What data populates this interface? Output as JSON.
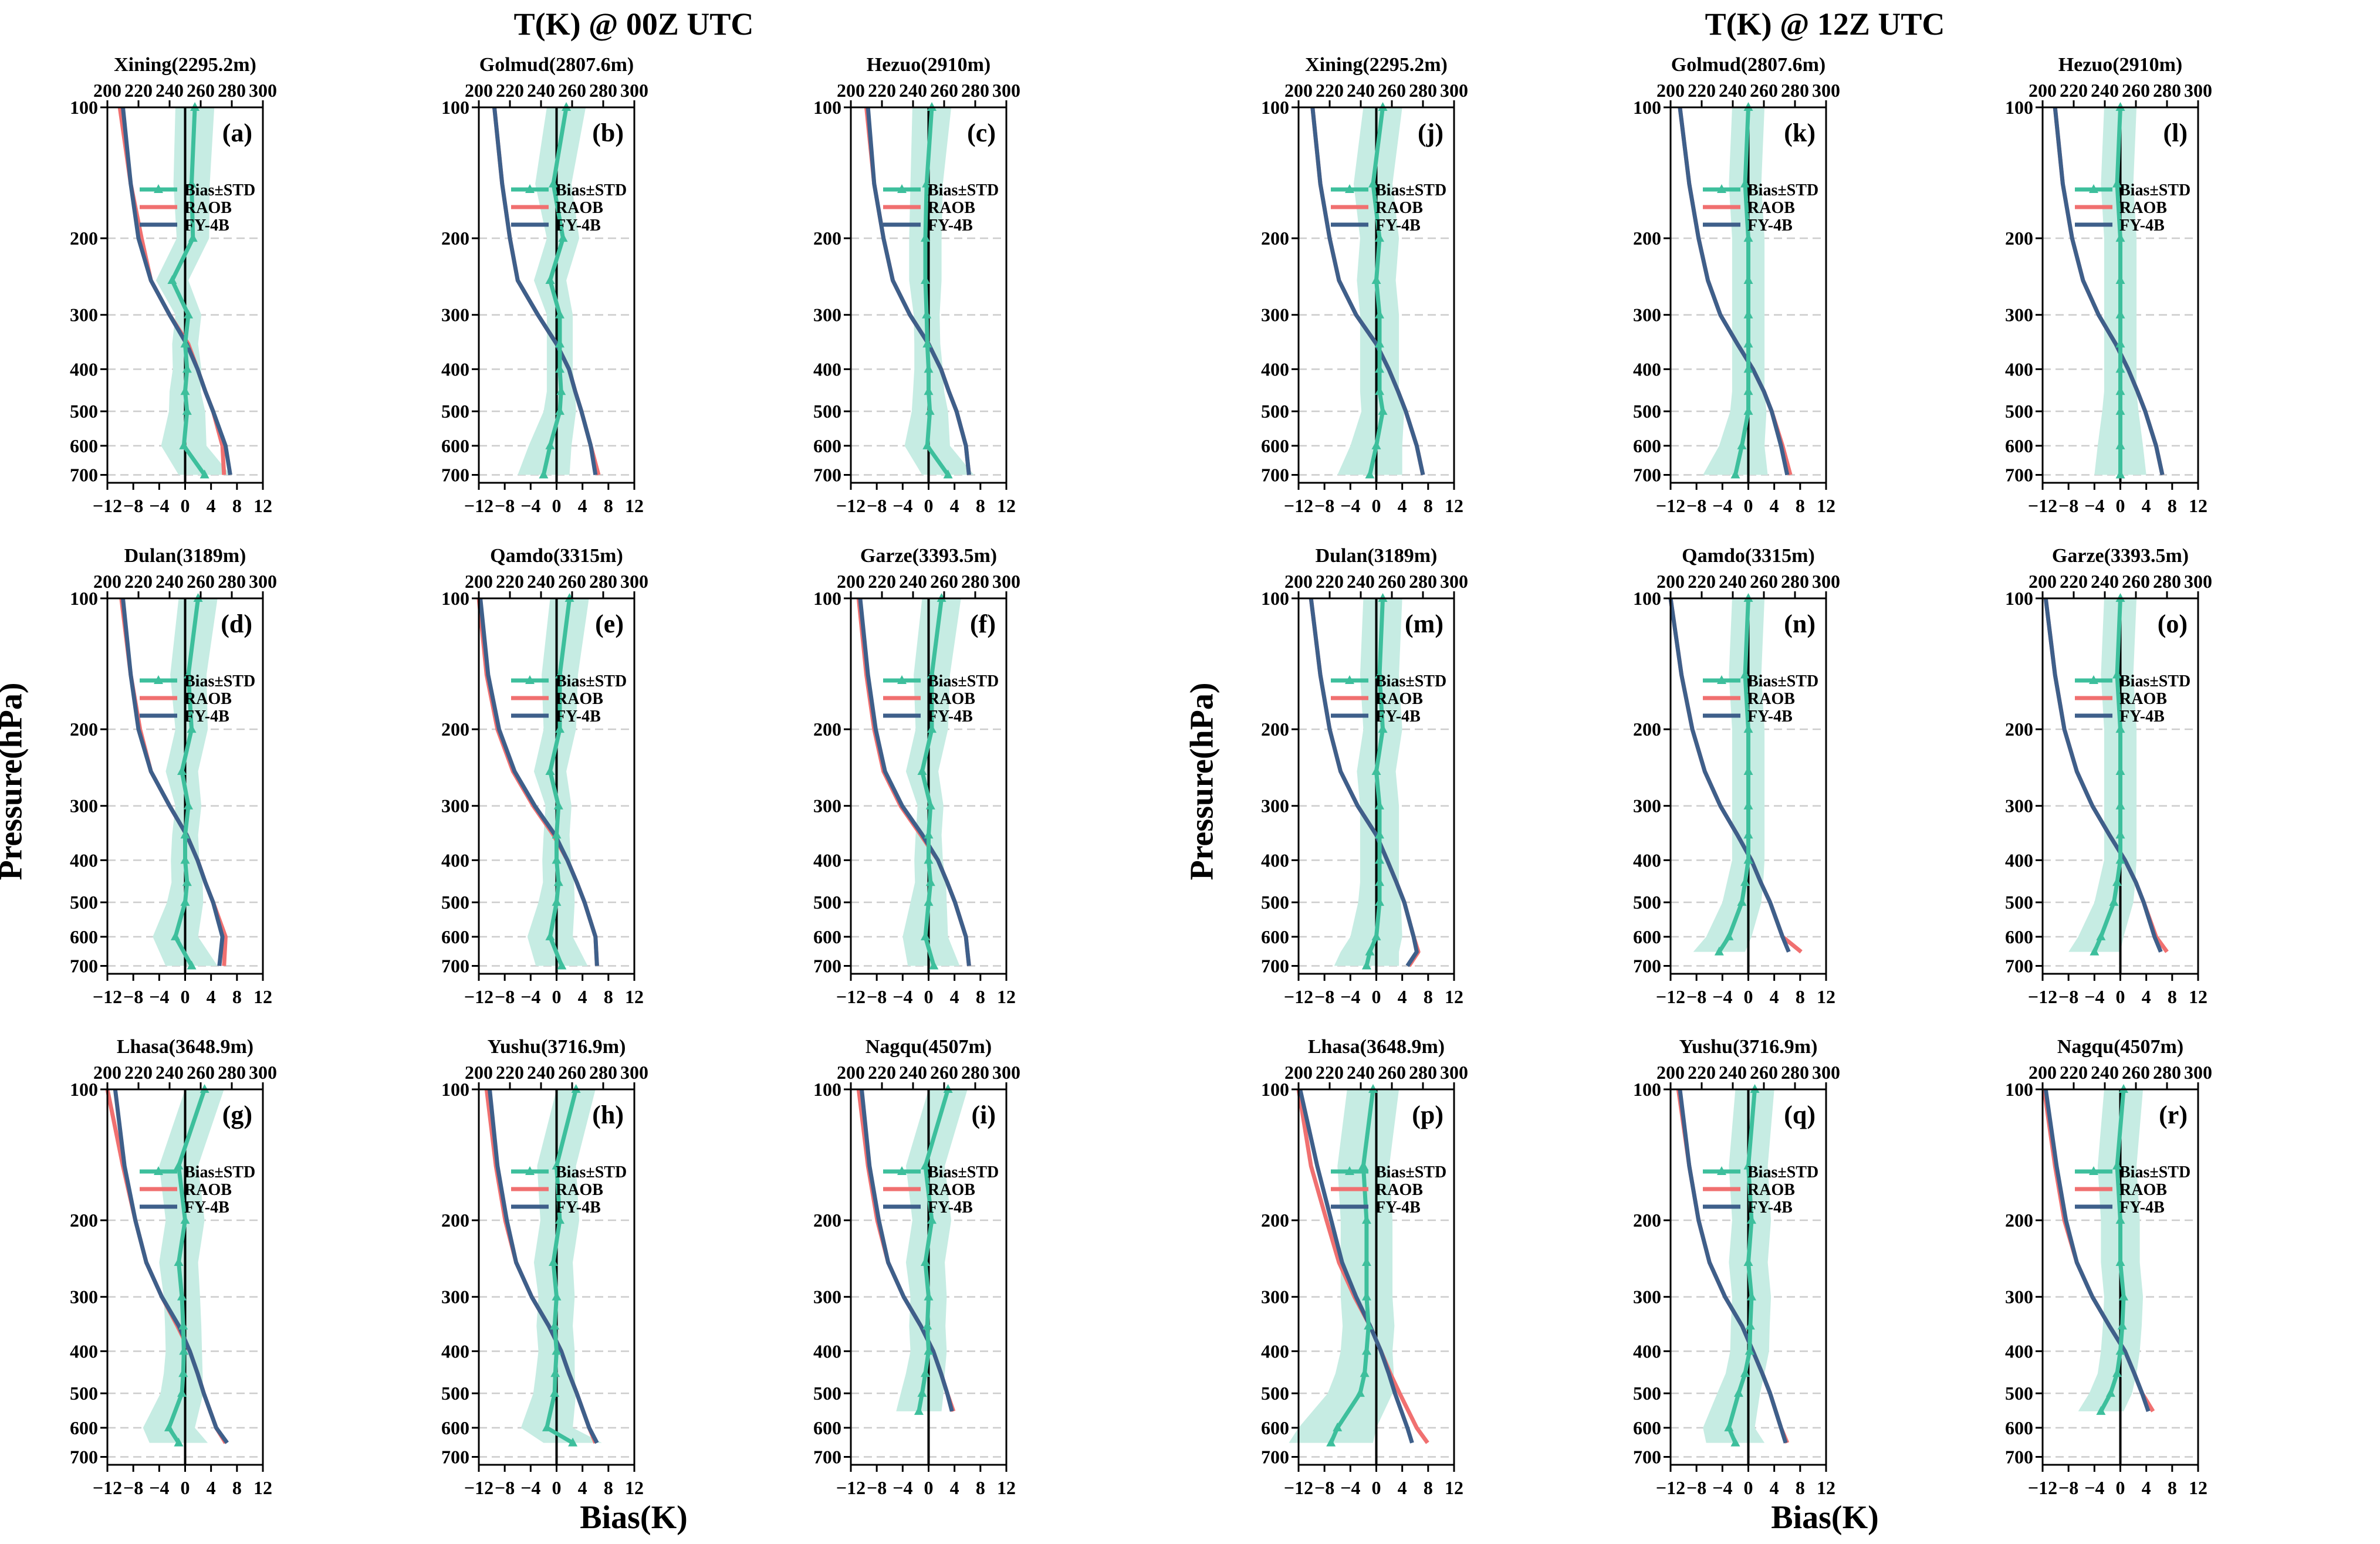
{
  "figure": {
    "title_left": "T(K) @ 00Z UTC",
    "title_right": "T(K) @ 12Z UTC",
    "ylabel": "Pressure(hPa)",
    "xlabel": "Bias(K)",
    "legend": [
      "Bias±STD",
      "RAOB",
      "FY-4B"
    ],
    "colors": {
      "bias": "#3dbf9c",
      "band": "#c6ece3",
      "raob": "#f07070",
      "fy4b": "#3e5f8a",
      "zero": "#000000",
      "grid": "#cccccc"
    },
    "bias_ticks": [
      -12,
      -8,
      -4,
      0,
      4,
      8,
      12
    ],
    "temp_ticks": [
      200,
      220,
      240,
      260,
      280,
      300
    ],
    "pressure_ticks": [
      100,
      200,
      300,
      400,
      500,
      600,
      700
    ],
    "bias_range": [
      -12,
      12
    ],
    "temp_range": [
      200,
      300
    ],
    "pressure_range": [
      100,
      730
    ]
  },
  "chart_data": [
    {
      "type": "line",
      "panel": "(a)",
      "station": "Xining(2295.2m)",
      "p": [
        100,
        150,
        200,
        250,
        300,
        350,
        400,
        450,
        500,
        600,
        700
      ],
      "bias": [
        1.5,
        1,
        1.2,
        -2,
        0.5,
        0,
        0.3,
        0,
        0.3,
        -0.2,
        3
      ],
      "std": [
        3,
        2.8,
        2.5,
        2.5,
        2,
        2,
        2.2,
        2.4,
        2.8,
        3.5,
        4
      ],
      "raob": [
        208,
        215,
        222,
        228,
        240,
        252,
        258,
        263,
        268,
        274,
        275
      ],
      "fy4b": [
        210,
        215,
        220,
        228,
        240,
        251,
        258,
        263,
        268,
        276,
        279
      ]
    },
    {
      "type": "line",
      "panel": "(b)",
      "station": "Golmud(2807.6m)",
      "p": [
        100,
        150,
        200,
        250,
        300,
        350,
        400,
        450,
        500,
        600,
        700
      ],
      "bias": [
        1.5,
        -0.5,
        1,
        -1,
        0.5,
        0.5,
        0.5,
        0.7,
        0.5,
        -1,
        -2
      ],
      "std": [
        3,
        2.8,
        2.5,
        2.5,
        2,
        2,
        2,
        2.2,
        2.5,
        3.3,
        4
      ],
      "raob": [
        210,
        215,
        220,
        225,
        238,
        250,
        258,
        262,
        266,
        272,
        277
      ],
      "fy4b": [
        210,
        215,
        220,
        225,
        238,
        250,
        258,
        262,
        266,
        272,
        275
      ]
    },
    {
      "type": "line",
      "panel": "(c)",
      "station": "Hezuo(2910m)",
      "p": [
        100,
        150,
        200,
        250,
        300,
        350,
        400,
        450,
        500,
        600,
        700
      ],
      "bias": [
        0.5,
        -0.3,
        -0.5,
        -0.5,
        -0.3,
        -0.2,
        0,
        0,
        0.2,
        -0.2,
        3
      ],
      "std": [
        3,
        2.5,
        2.5,
        2.5,
        2,
        2,
        2.2,
        2.4,
        2.8,
        3.5,
        4
      ],
      "raob": [
        210,
        215,
        221,
        227,
        238,
        250,
        258,
        263,
        268,
        274,
        276
      ],
      "fy4b": [
        211,
        215,
        221,
        227,
        238,
        250,
        258,
        263,
        268,
        274,
        276
      ]
    },
    {
      "type": "line",
      "panel": "(d)",
      "station": "Dulan(3189m)",
      "p": [
        100,
        150,
        200,
        250,
        300,
        350,
        400,
        450,
        500,
        600,
        700
      ],
      "bias": [
        2,
        0.5,
        1,
        -0.5,
        0.5,
        0,
        0,
        0.3,
        0,
        -1.5,
        1
      ],
      "std": [
        3,
        2.8,
        2.5,
        2.5,
        2,
        2,
        2.2,
        2.4,
        2.8,
        3.5,
        4
      ],
      "raob": [
        209,
        215,
        221,
        228,
        240,
        251,
        258,
        263,
        268,
        276,
        275
      ],
      "fy4b": [
        210,
        215,
        220,
        228,
        240,
        251,
        258,
        263,
        268,
        274,
        272
      ]
    },
    {
      "type": "line",
      "panel": "(e)",
      "station": "Qamdo(3315m)",
      "p": [
        100,
        150,
        200,
        250,
        300,
        350,
        400,
        450,
        500,
        600,
        700
      ],
      "bias": [
        2,
        0.5,
        0.5,
        -1,
        0.3,
        0,
        0,
        0.3,
        0,
        -1,
        0.8
      ],
      "std": [
        3,
        2.8,
        2.5,
        2.5,
        2,
        2,
        2.2,
        2.4,
        2.8,
        3.5,
        4
      ],
      "raob": [
        200,
        205,
        212,
        222,
        235,
        248,
        257,
        263,
        268,
        275,
        276
      ],
      "fy4b": [
        201,
        206,
        213,
        223,
        236,
        249,
        257,
        263,
        268,
        275,
        276
      ]
    },
    {
      "type": "line",
      "panel": "(f)",
      "station": "Garze(3393.5m)",
      "p": [
        100,
        150,
        200,
        250,
        300,
        350,
        400,
        450,
        500,
        600,
        700
      ],
      "bias": [
        2,
        0.5,
        0.5,
        -1,
        0.3,
        0,
        0,
        0.3,
        0,
        -0.5,
        0.8
      ],
      "std": [
        3,
        2.8,
        2.5,
        2.5,
        2,
        2,
        2.2,
        2.4,
        2.8,
        3.5,
        4
      ],
      "raob": [
        205,
        210,
        215,
        221,
        232,
        245,
        256,
        262,
        267,
        274,
        276
      ],
      "fy4b": [
        206,
        211,
        216,
        222,
        233,
        246,
        256,
        262,
        267,
        274,
        276
      ]
    },
    {
      "type": "line",
      "panel": "(g)",
      "station": "Lhasa(3648.9m)",
      "p": [
        100,
        150,
        200,
        250,
        300,
        350,
        400,
        450,
        500,
        600,
        650
      ],
      "bias": [
        3,
        -1,
        0,
        -1,
        -0.5,
        -0.3,
        -0.2,
        -0.3,
        -0.5,
        -2.5,
        -1
      ],
      "std": [
        3,
        3,
        3,
        3,
        2.8,
        2.8,
        2.8,
        3,
        3.3,
        4,
        4.5
      ],
      "raob": [
        200,
        210,
        218,
        225,
        235,
        245,
        253,
        258,
        262,
        270,
        276
      ],
      "fy4b": [
        205,
        211,
        218,
        225,
        235,
        246,
        253,
        258,
        262,
        270,
        277
      ]
    },
    {
      "type": "line",
      "panel": "(h)",
      "station": "Yushu(3716.9m)",
      "p": [
        100,
        150,
        200,
        250,
        300,
        350,
        400,
        450,
        500,
        600,
        650
      ],
      "bias": [
        3,
        0,
        0.5,
        -0.5,
        0,
        -0.3,
        0,
        -0.2,
        -0.3,
        -1.5,
        2.5
      ],
      "std": [
        3,
        3,
        3,
        3,
        2.8,
        2.8,
        2.8,
        3,
        3.3,
        4,
        4.5
      ],
      "raob": [
        205,
        211,
        217,
        224,
        234,
        245,
        253,
        258,
        263,
        271,
        275
      ],
      "fy4b": [
        207,
        212,
        218,
        224,
        234,
        245,
        253,
        258,
        263,
        271,
        276
      ]
    },
    {
      "type": "line",
      "panel": "(i)",
      "station": "Nagqu(4507m)",
      "p": [
        100,
        150,
        200,
        250,
        300,
        350,
        400,
        450,
        500,
        550
      ],
      "bias": [
        3,
        -0.5,
        0.5,
        -0.5,
        0,
        -0.2,
        0,
        -0.5,
        -1,
        -1.5
      ],
      "std": [
        3,
        3,
        3,
        3,
        2.8,
        2.8,
        2.8,
        3,
        3.3,
        3.5
      ],
      "raob": [
        205,
        211,
        217,
        224,
        234,
        245,
        253,
        258,
        262,
        266
      ],
      "fy4b": [
        207,
        212,
        218,
        224,
        234,
        245,
        253,
        258,
        262,
        265
      ]
    },
    {
      "type": "line",
      "panel": "(j)",
      "station": "Xining(2295.2m)",
      "p": [
        100,
        150,
        200,
        250,
        300,
        350,
        400,
        450,
        500,
        600,
        700
      ],
      "bias": [
        1,
        -0.5,
        0.5,
        0,
        0.5,
        0.5,
        0.5,
        0.5,
        1,
        0,
        -1
      ],
      "std": [
        3,
        3,
        3,
        3,
        3,
        3,
        3,
        3,
        3.3,
        4,
        5
      ],
      "raob": [
        209,
        214,
        220,
        226,
        237,
        250,
        258,
        264,
        269,
        276,
        280
      ],
      "fy4b": [
        209,
        214,
        220,
        226,
        237,
        250,
        258,
        264,
        269,
        276,
        280
      ]
    },
    {
      "type": "line",
      "panel": "(k)",
      "station": "Golmud(2807.6m)",
      "p": [
        100,
        150,
        200,
        250,
        300,
        350,
        400,
        450,
        500,
        600,
        700
      ],
      "bias": [
        0,
        -0.5,
        0,
        0,
        0,
        0,
        0,
        0,
        0,
        -1,
        -2
      ],
      "std": [
        2.5,
        2.5,
        2.5,
        2.5,
        2.5,
        2.5,
        2.5,
        2.5,
        2.8,
        3.5,
        5
      ],
      "raob": [
        206,
        212,
        218,
        224,
        232,
        243,
        253,
        260,
        265,
        272,
        277
      ],
      "fy4b": [
        206,
        212,
        218,
        224,
        232,
        243,
        253,
        260,
        265,
        271,
        275
      ]
    },
    {
      "type": "line",
      "panel": "(l)",
      "station": "Hezuo(2910m)",
      "p": [
        100,
        150,
        200,
        250,
        300,
        350,
        400,
        450,
        500,
        600,
        700
      ],
      "bias": [
        0,
        -0.5,
        0,
        0,
        0,
        0,
        0,
        0,
        0,
        0,
        0
      ],
      "std": [
        2.5,
        2.5,
        2.5,
        2.5,
        2.5,
        2.5,
        2.5,
        2.5,
        2.8,
        3.5,
        4
      ],
      "raob": [
        208,
        213,
        219,
        226,
        236,
        247,
        255,
        261,
        266,
        273,
        277
      ],
      "fy4b": [
        208,
        213,
        219,
        226,
        236,
        247,
        255,
        261,
        266,
        273,
        277
      ]
    },
    {
      "type": "line",
      "panel": "(m)",
      "station": "Dulan(3189m)",
      "p": [
        100,
        150,
        200,
        250,
        300,
        350,
        400,
        450,
        500,
        600,
        650,
        700
      ],
      "bias": [
        1,
        0.5,
        1,
        0,
        0.5,
        0.5,
        0.5,
        0.5,
        0.5,
        0,
        -1,
        -1.5
      ],
      "std": [
        3,
        3,
        3,
        3,
        3,
        3,
        3,
        3,
        3.3,
        4,
        4.5,
        5
      ],
      "raob": [
        208,
        214,
        220,
        227,
        238,
        250,
        257,
        263,
        268,
        274,
        277,
        271
      ],
      "fy4b": [
        208,
        214,
        220,
        227,
        238,
        250,
        257,
        263,
        268,
        274,
        276,
        270
      ]
    },
    {
      "type": "line",
      "panel": "(n)",
      "station": "Qamdo(3315m)",
      "p": [
        100,
        150,
        200,
        250,
        300,
        350,
        400,
        450,
        500,
        600,
        650
      ],
      "bias": [
        0,
        -0.5,
        0,
        0,
        0,
        0,
        0,
        -0.5,
        -1,
        -3,
        -4.5
      ],
      "std": [
        2.5,
        2.5,
        2.5,
        2.5,
        2.5,
        2.5,
        2.5,
        2.8,
        3,
        3.5,
        4
      ],
      "raob": [
        200,
        207,
        214,
        222,
        232,
        243,
        252,
        258,
        264,
        272,
        284
      ],
      "fy4b": [
        200,
        207,
        214,
        222,
        232,
        243,
        252,
        258,
        264,
        272,
        276
      ]
    },
    {
      "type": "line",
      "panel": "(o)",
      "station": "Garze(3393.5m)",
      "p": [
        100,
        150,
        200,
        250,
        300,
        350,
        400,
        450,
        500,
        600,
        650
      ],
      "bias": [
        0,
        -0.5,
        0,
        0,
        0,
        0,
        0,
        -0.5,
        -1,
        -3,
        -4
      ],
      "std": [
        2.5,
        2.5,
        2.5,
        2.5,
        2.5,
        2.5,
        2.5,
        2.8,
        3,
        3.5,
        4
      ],
      "raob": [
        202,
        208,
        214,
        222,
        232,
        243,
        253,
        260,
        265,
        273,
        280
      ],
      "fy4b": [
        202,
        208,
        214,
        222,
        232,
        243,
        253,
        260,
        265,
        272,
        276
      ]
    },
    {
      "type": "line",
      "panel": "(p)",
      "station": "Lhasa(3648.9m)",
      "p": [
        100,
        150,
        200,
        250,
        300,
        350,
        400,
        450,
        500,
        600,
        650
      ],
      "bias": [
        -0.5,
        -2,
        -1.5,
        -1.5,
        -1.5,
        -1.2,
        -1.5,
        -1.8,
        -2.5,
        -6,
        -7
      ],
      "std": [
        4,
        4,
        4,
        4,
        4,
        4,
        4,
        4.5,
        5,
        6,
        6.5
      ],
      "raob": [
        200,
        208,
        218,
        226,
        236,
        246,
        253,
        259,
        265,
        276,
        283
      ],
      "fy4b": [
        201,
        212,
        221,
        228,
        237,
        246,
        253,
        258,
        262,
        270,
        273
      ]
    },
    {
      "type": "line",
      "panel": "(q)",
      "station": "Yushu(3716.9m)",
      "p": [
        100,
        150,
        200,
        250,
        300,
        350,
        400,
        450,
        500,
        600,
        650
      ],
      "bias": [
        1,
        0,
        0.5,
        0,
        0.5,
        0.3,
        0.2,
        -0.5,
        -1.5,
        -3,
        -2
      ],
      "std": [
        3,
        3,
        3,
        3,
        3,
        3,
        3,
        3,
        3.3,
        4,
        4.5
      ],
      "raob": [
        205,
        212,
        218,
        225,
        235,
        246,
        253,
        259,
        264,
        271,
        275
      ],
      "fy4b": [
        206,
        212,
        218,
        225,
        235,
        246,
        253,
        259,
        264,
        271,
        274
      ]
    },
    {
      "type": "line",
      "panel": "(r)",
      "station": "Nagqu(4507m)",
      "p": [
        100,
        150,
        200,
        250,
        300,
        350,
        400,
        450,
        500,
        550
      ],
      "bias": [
        0.5,
        -0.5,
        0,
        0,
        0.5,
        0.3,
        0,
        -0.5,
        -1.5,
        -3
      ],
      "std": [
        3,
        3,
        3,
        3,
        3,
        3,
        3,
        3,
        3.3,
        3.5
      ],
      "raob": [
        201,
        208,
        214,
        222,
        232,
        243,
        253,
        259,
        264,
        271
      ],
      "fy4b": [
        202,
        209,
        215,
        222,
        232,
        243,
        253,
        259,
        264,
        268
      ]
    }
  ]
}
